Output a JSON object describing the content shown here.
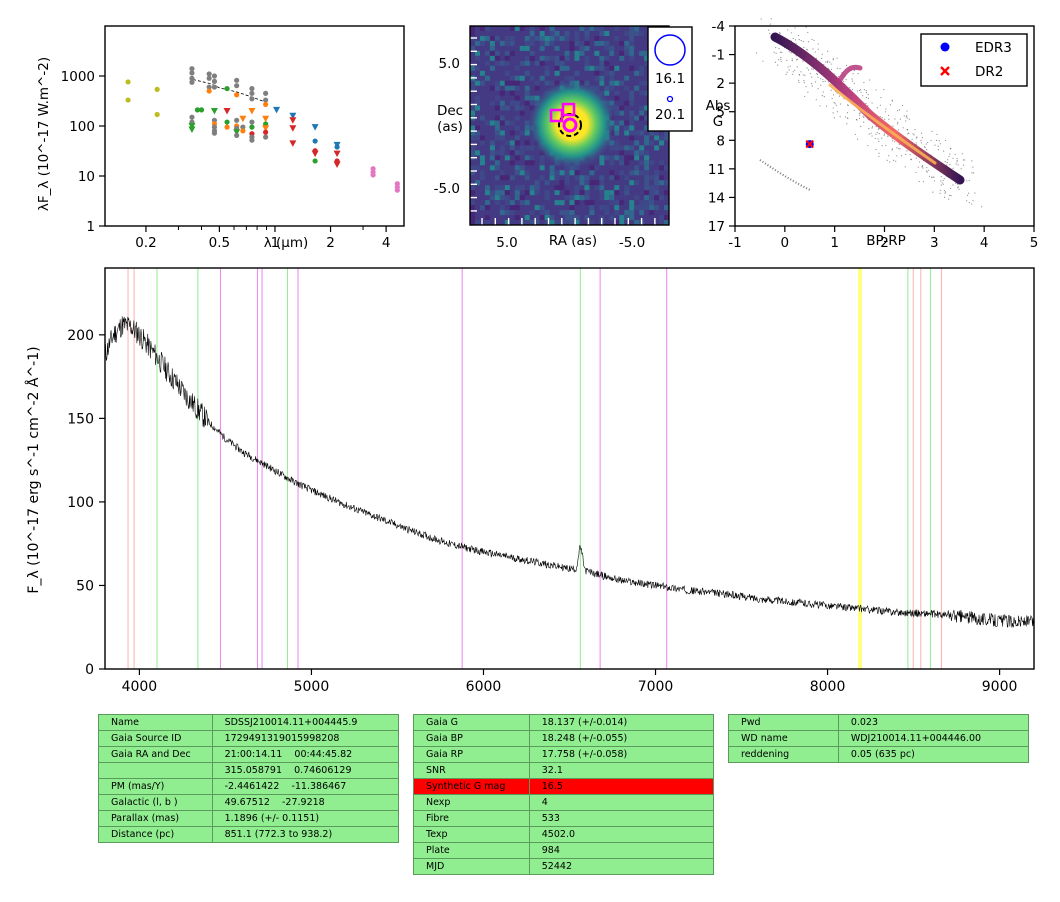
{
  "sed": {
    "ylabel": "λF_λ (10^-17 W.m^-2)",
    "xlabel": "λ (μm)",
    "ytick_labels": [
      "1",
      "10",
      "100",
      "1000"
    ],
    "ytick_values": [
      1,
      10,
      100,
      1000
    ],
    "xtick_labels": [
      "0.2",
      "0.5",
      "1",
      "2",
      "4"
    ],
    "xtick_values": [
      0.2,
      0.5,
      1,
      2,
      4
    ],
    "xlim": [
      0.12,
      5.0
    ],
    "ylim": [
      1,
      10000
    ],
    "x_scale": "log",
    "y_scale": "log",
    "points": [
      {
        "x": 0.16,
        "y": 760,
        "c": "#bcbd22",
        "m": "dot"
      },
      {
        "x": 0.16,
        "y": 330,
        "c": "#bcbd22",
        "m": "dot"
      },
      {
        "x": 0.23,
        "y": 540,
        "c": "#bcbd22",
        "m": "dot"
      },
      {
        "x": 0.23,
        "y": 170,
        "c": "#bcbd22",
        "m": "dot"
      },
      {
        "x": 0.355,
        "y": 1400,
        "c": "#7f7f7f",
        "m": "dot"
      },
      {
        "x": 0.355,
        "y": 1150,
        "c": "#7f7f7f",
        "m": "dot"
      },
      {
        "x": 0.355,
        "y": 900,
        "c": "#7f7f7f",
        "m": "dot"
      },
      {
        "x": 0.355,
        "y": 750,
        "c": "#7f7f7f",
        "m": "dot"
      },
      {
        "x": 0.355,
        "y": 150,
        "c": "#7f7f7f",
        "m": "dot"
      },
      {
        "x": 0.355,
        "y": 120,
        "c": "#7f7f7f",
        "m": "dot"
      },
      {
        "x": 0.355,
        "y": 100,
        "c": "#2ca02c",
        "m": "tri"
      },
      {
        "x": 0.355,
        "y": 85,
        "c": "#2ca02c",
        "m": "tri"
      },
      {
        "x": 0.38,
        "y": 210,
        "c": "#2ca02c",
        "m": "dot"
      },
      {
        "x": 0.4,
        "y": 210,
        "c": "#2ca02c",
        "m": "dot"
      },
      {
        "x": 0.44,
        "y": 1100,
        "c": "#7f7f7f",
        "m": "dot"
      },
      {
        "x": 0.44,
        "y": 900,
        "c": "#7f7f7f",
        "m": "dot"
      },
      {
        "x": 0.44,
        "y": 600,
        "c": "#7f7f7f",
        "m": "dot"
      },
      {
        "x": 0.44,
        "y": 500,
        "c": "#ff7f0e",
        "m": "dot"
      },
      {
        "x": 0.47,
        "y": 1000,
        "c": "#7f7f7f",
        "m": "dot"
      },
      {
        "x": 0.47,
        "y": 780,
        "c": "#7f7f7f",
        "m": "dot"
      },
      {
        "x": 0.47,
        "y": 600,
        "c": "#7f7f7f",
        "m": "dot"
      },
      {
        "x": 0.47,
        "y": 200,
        "c": "#2ca02c",
        "m": "tri"
      },
      {
        "x": 0.47,
        "y": 130,
        "c": "#7f7f7f",
        "m": "dot"
      },
      {
        "x": 0.47,
        "y": 110,
        "c": "#ff7f0e",
        "m": "dot"
      },
      {
        "x": 0.47,
        "y": 95,
        "c": "#7f7f7f",
        "m": "dot"
      },
      {
        "x": 0.47,
        "y": 80,
        "c": "#7f7f7f",
        "m": "dot"
      },
      {
        "x": 0.47,
        "y": 72,
        "c": "#7f7f7f",
        "m": "dot"
      },
      {
        "x": 0.55,
        "y": 560,
        "c": "#2ca02c",
        "m": "dot"
      },
      {
        "x": 0.55,
        "y": 200,
        "c": "#d62728",
        "m": "tri"
      },
      {
        "x": 0.55,
        "y": 120,
        "c": "#2ca02c",
        "m": "dot"
      },
      {
        "x": 0.55,
        "y": 95,
        "c": "#ff7f0e",
        "m": "dot"
      },
      {
        "x": 0.62,
        "y": 820,
        "c": "#7f7f7f",
        "m": "dot"
      },
      {
        "x": 0.62,
        "y": 640,
        "c": "#7f7f7f",
        "m": "dot"
      },
      {
        "x": 0.62,
        "y": 420,
        "c": "#ff7f0e",
        "m": "dot"
      },
      {
        "x": 0.62,
        "y": 130,
        "c": "#7f7f7f",
        "m": "dot"
      },
      {
        "x": 0.62,
        "y": 100,
        "c": "#ff7f0e",
        "m": "dot"
      },
      {
        "x": 0.62,
        "y": 90,
        "c": "#7f7f7f",
        "m": "dot"
      },
      {
        "x": 0.62,
        "y": 75,
        "c": "#2ca02c",
        "m": "tri"
      },
      {
        "x": 0.62,
        "y": 65,
        "c": "#7f7f7f",
        "m": "dot"
      },
      {
        "x": 0.67,
        "y": 140,
        "c": "#ff7f0e",
        "m": "tri"
      },
      {
        "x": 0.67,
        "y": 95,
        "c": "#7f7f7f",
        "m": "dot"
      },
      {
        "x": 0.67,
        "y": 80,
        "c": "#ff7f0e",
        "m": "dot"
      },
      {
        "x": 0.75,
        "y": 560,
        "c": "#7f7f7f",
        "m": "dot"
      },
      {
        "x": 0.75,
        "y": 450,
        "c": "#7f7f7f",
        "m": "dot"
      },
      {
        "x": 0.75,
        "y": 350,
        "c": "#7f7f7f",
        "m": "dot"
      },
      {
        "x": 0.75,
        "y": 200,
        "c": "#ff7f0e",
        "m": "tri"
      },
      {
        "x": 0.75,
        "y": 120,
        "c": "#7f7f7f",
        "m": "dot"
      },
      {
        "x": 0.75,
        "y": 95,
        "c": "#2ca02c",
        "m": "dot"
      },
      {
        "x": 0.75,
        "y": 70,
        "c": "#d62728",
        "m": "dot"
      },
      {
        "x": 0.75,
        "y": 60,
        "c": "#7f7f7f",
        "m": "dot"
      },
      {
        "x": 0.75,
        "y": 52,
        "c": "#7f7f7f",
        "m": "dot"
      },
      {
        "x": 0.89,
        "y": 450,
        "c": "#7f7f7f",
        "m": "dot"
      },
      {
        "x": 0.89,
        "y": 330,
        "c": "#7f7f7f",
        "m": "dot"
      },
      {
        "x": 0.89,
        "y": 270,
        "c": "#ff7f0e",
        "m": "dot"
      },
      {
        "x": 0.89,
        "y": 140,
        "c": "#ff7f0e",
        "m": "tri"
      },
      {
        "x": 0.89,
        "y": 110,
        "c": "#2ca02c",
        "m": "dot"
      },
      {
        "x": 0.89,
        "y": 90,
        "c": "#ff7f0e",
        "m": "tri"
      },
      {
        "x": 0.89,
        "y": 75,
        "c": "#d62728",
        "m": "dot"
      },
      {
        "x": 0.89,
        "y": 60,
        "c": "#7f7f7f",
        "m": "dot"
      },
      {
        "x": 1.02,
        "y": 210,
        "c": "#1f77b4",
        "m": "tri"
      },
      {
        "x": 1.25,
        "y": 160,
        "c": "#1f77b4",
        "m": "tri"
      },
      {
        "x": 1.25,
        "y": 130,
        "c": "#d62728",
        "m": "tri"
      },
      {
        "x": 1.25,
        "y": 90,
        "c": "#d62728",
        "m": "tri"
      },
      {
        "x": 1.25,
        "y": 45,
        "c": "#d62728",
        "m": "tri"
      },
      {
        "x": 1.65,
        "y": 95,
        "c": "#1f77b4",
        "m": "tri"
      },
      {
        "x": 1.65,
        "y": 50,
        "c": "#1f77b4",
        "m": "dot"
      },
      {
        "x": 1.65,
        "y": 32,
        "c": "#d62728",
        "m": "dot"
      },
      {
        "x": 1.65,
        "y": 28,
        "c": "#d62728",
        "m": "tri"
      },
      {
        "x": 1.65,
        "y": 20,
        "c": "#2ca02c",
        "m": "dot"
      },
      {
        "x": 2.17,
        "y": 42,
        "c": "#1f77b4",
        "m": "tri"
      },
      {
        "x": 2.17,
        "y": 38,
        "c": "#1f77b4",
        "m": "dot"
      },
      {
        "x": 2.17,
        "y": 28,
        "c": "#d62728",
        "m": "tri"
      },
      {
        "x": 2.17,
        "y": 20,
        "c": "#d62728",
        "m": "dot"
      },
      {
        "x": 2.17,
        "y": 17,
        "c": "#d62728",
        "m": "tri"
      },
      {
        "x": 3.4,
        "y": 14,
        "c": "#e377c2",
        "m": "dot"
      },
      {
        "x": 3.4,
        "y": 12,
        "c": "#e377c2",
        "m": "dot"
      },
      {
        "x": 3.4,
        "y": 10.5,
        "c": "#e377c2",
        "m": "dot"
      },
      {
        "x": 4.6,
        "y": 7,
        "c": "#e377c2",
        "m": "dot"
      },
      {
        "x": 4.6,
        "y": 6,
        "c": "#e377c2",
        "m": "dot"
      },
      {
        "x": 4.6,
        "y": 5.2,
        "c": "#e377c2",
        "m": "dot"
      }
    ],
    "model_line": [
      [
        0.36,
        850
      ],
      [
        0.45,
        700
      ],
      [
        0.5,
        580
      ],
      [
        0.62,
        480
      ],
      [
        0.75,
        380
      ],
      [
        0.89,
        300
      ]
    ]
  },
  "image": {
    "ylabel": "Dec (as)",
    "xlabel": "RA (as)",
    "xtick_labels": [
      "5.0",
      "-5.0"
    ],
    "ytick_labels": [
      "5.0",
      "-5.0"
    ],
    "legend_mags": [
      "16.1",
      "20.1"
    ]
  },
  "hrd": {
    "xlabel": "BP-RP",
    "ylabel": "Abs G",
    "xtick_labels": [
      "-1",
      "0",
      "1",
      "2",
      "3",
      "4",
      "5"
    ],
    "ytick_labels": [
      "-4",
      "-1",
      "2",
      "5",
      "8",
      "11",
      "14",
      "17"
    ],
    "xlim": [
      -1,
      5
    ],
    "ylim": [
      17,
      -4
    ],
    "legend": [
      {
        "label": "EDR3",
        "color": "#0000ff",
        "marker": "circle"
      },
      {
        "label": "DR2",
        "color": "#ff0000",
        "marker": "x"
      }
    ],
    "target_bp_rp": 0.5,
    "target_abs_g": 8.4
  },
  "chart_data": {
    "type": "line",
    "xlabel": "",
    "ylabel": "F_λ (10^-17 erg s^-1 cm^-2 Å^-1)",
    "xlim": [
      3800,
      9200
    ],
    "ylim": [
      0,
      240
    ],
    "xtick_labels": [
      "4000",
      "5000",
      "6000",
      "7000",
      "8000",
      "9000"
    ],
    "xtick_values": [
      4000,
      5000,
      6000,
      7000,
      8000,
      9000
    ],
    "ytick_labels": [
      "0",
      "50",
      "100",
      "150",
      "200"
    ],
    "ytick_values": [
      0,
      50,
      100,
      150,
      200
    ],
    "grid": false,
    "series": [
      {
        "x": [
          3800,
          3850,
          3900,
          3950,
          4000,
          4100,
          4200,
          4300,
          4400,
          4500,
          4600,
          4700,
          4800,
          4900,
          5000,
          5200,
          5400,
          5600,
          5800,
          6000,
          6200,
          6400,
          6500,
          6540,
          6563,
          6590,
          6650,
          6800,
          7000,
          7200,
          7400,
          7600,
          7800,
          8000,
          8200,
          8400,
          8600,
          8800,
          9000,
          9200
        ],
        "values": [
          188,
          200,
          206,
          205,
          200,
          187,
          173,
          160,
          148,
          138,
          130,
          124,
          118,
          112,
          107,
          98,
          90,
          82,
          75,
          70,
          66,
          62,
          60,
          60,
          74,
          59,
          57,
          53,
          50,
          47,
          45,
          42,
          40,
          38,
          36,
          34,
          33,
          31,
          29,
          28
        ],
        "color": "#000000"
      }
    ],
    "vlines": [
      {
        "x": 3934,
        "color": "#ffb0b0"
      },
      {
        "x": 3969,
        "color": "#ffb0b0"
      },
      {
        "x": 4102,
        "color": "#90ee90"
      },
      {
        "x": 4340,
        "color": "#90ee90"
      },
      {
        "x": 4471,
        "color": "#ee82ee"
      },
      {
        "x": 4686,
        "color": "#ee82ee"
      },
      {
        "x": 4713,
        "color": "#ee82ee"
      },
      {
        "x": 4861,
        "color": "#90ee90"
      },
      {
        "x": 4922,
        "color": "#ee82ee"
      },
      {
        "x": 5876,
        "color": "#ee82ee"
      },
      {
        "x": 6563,
        "color": "#90ee90"
      },
      {
        "x": 6678,
        "color": "#ee82ee"
      },
      {
        "x": 7065,
        "color": "#ee82ee"
      },
      {
        "x": 8183,
        "color": "#ffff00"
      },
      {
        "x": 8195,
        "color": "#ffff00"
      },
      {
        "x": 8467,
        "color": "#90ee90"
      },
      {
        "x": 8498,
        "color": "#ffb0b0"
      },
      {
        "x": 8542,
        "color": "#ffb0b0"
      },
      {
        "x": 8598,
        "color": "#90ee90"
      },
      {
        "x": 8662,
        "color": "#ffb0b0"
      }
    ]
  },
  "tables": {
    "left": [
      [
        "Name",
        "SDSSJ210014.11+004445.9"
      ],
      [
        "Gaia Source ID",
        "1729491319015998208"
      ],
      [
        "Gaia RA and Dec",
        "21:00:14.11    00:44:45.82"
      ],
      [
        "",
        "315.058791    0.74606129"
      ],
      [
        "PM (mas/Y)",
        "-2.4461422    -11.386467"
      ],
      [
        "Galactic (l, b )",
        "49.67512    -27.9218"
      ],
      [
        "Parallax (mas)",
        "1.1896 (+/- 0.1151)"
      ],
      [
        "Distance (pc)",
        "851.1 (772.3 to 938.2)"
      ]
    ],
    "middle": [
      [
        "Gaia G",
        "18.137 (+/-0.014)"
      ],
      [
        "Gaia BP",
        "18.248 (+/-0.055)"
      ],
      [
        "Gaia RP",
        "17.758 (+/-0.058)"
      ],
      [
        "SNR",
        "32.1"
      ],
      [
        "Synthetic G mag",
        "16.5"
      ],
      [
        "Nexp",
        "4"
      ],
      [
        "Fibre",
        "533"
      ],
      [
        "Texp",
        "4502.0"
      ],
      [
        "Plate",
        "984"
      ],
      [
        "MJD",
        "52442"
      ]
    ],
    "middle_highlight_color": "#ff0000",
    "right": [
      [
        "Pwd",
        "0.023"
      ],
      [
        "WD name",
        "WDJ210014.11+004446.00"
      ],
      [
        "reddening",
        "0.05 (635 pc)"
      ]
    ]
  }
}
